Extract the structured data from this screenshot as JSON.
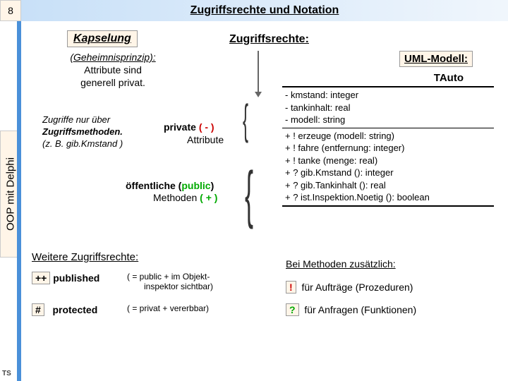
{
  "pageNumber": "8",
  "title": "Zugriffsrechte und Notation",
  "sideLabel": "OOP mit Delphi",
  "cornerLabel": "TS",
  "kapselung": {
    "header": "Kapselung",
    "principleLine": "(Geheimnisprinzip):",
    "line2": "Attribute sind",
    "line3": "generell privat.",
    "access": {
      "l1": "Zugriffe nur über",
      "l2": "Zugriffsmethoden.",
      "l3": "(z. B. gib.Kmstand )"
    }
  },
  "zugriffsrechte": {
    "header": "Zugriffsrechte:",
    "privateLabel": "private",
    "privateSymbol": "( - )",
    "privateWord": "Attribute",
    "publicLabel1": "öffentliche (",
    "publicLabel2": "public",
    "publicLabel3": ")",
    "methodWord": "Methoden",
    "publicSymbol": "( + )"
  },
  "uml": {
    "header": "UML-Modell:",
    "className": "TAuto",
    "attributes": [
      "- kmstand: integer",
      "- tankinhalt: real",
      "- modell: string"
    ],
    "methods": [
      "+ ! erzeuge (modell: string)",
      "+ ! fahre (entfernung: integer)",
      "+ ! tanke (menge: real)",
      "+ ? gib.Kmstand (): integer",
      "+ ? gib.Tankinhalt (): real",
      "+ ? ist.Inspektion.Noetig (): boolean"
    ]
  },
  "further": {
    "header": "Weitere Zugriffsrechte:",
    "publishedSym": "++",
    "publishedWord": "published",
    "publishedDesc1": "( = public + im Objekt-",
    "publishedDesc2": "inspektor sichtbar)",
    "protectedSym": "#",
    "protectedWord": "protected",
    "protectedDesc": "( = privat + vererbbar)"
  },
  "methodsExtra": {
    "header": "Bei Methoden zusätzlich:",
    "auftragSym": "!",
    "auftragText": "für Aufträge  (Prozeduren)",
    "anfrageSym": "?",
    "anfrageText": "für Anfragen (Funktionen)"
  },
  "colors": {
    "hi": "#fff5e8",
    "red": "#c00",
    "green": "#0a0"
  }
}
